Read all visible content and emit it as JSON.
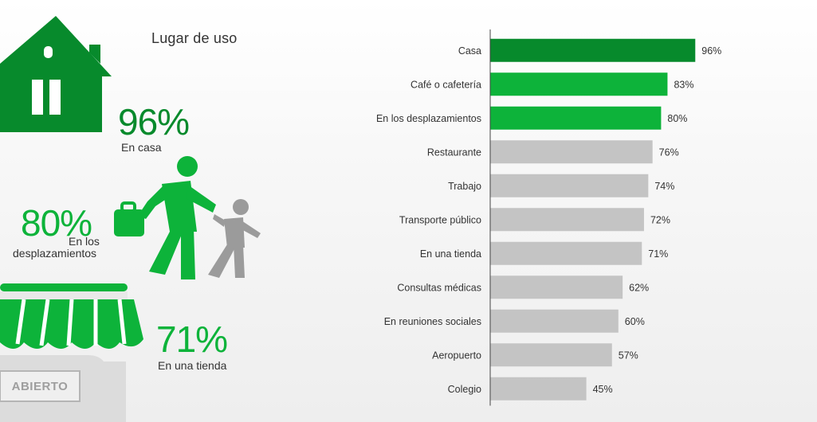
{
  "colors": {
    "dark_green": "#078a2c",
    "bright_green": "#0db33a",
    "gray": "#c4c4c4",
    "axis": "#444444",
    "text": "#333333"
  },
  "panel_title": "Lugar de uso",
  "highlights": {
    "home": {
      "value": "96%",
      "label": "En casa",
      "icon": "house-icon"
    },
    "commute": {
      "value": "80%",
      "label_line1": "En los",
      "label_line2": "desplazamientos",
      "icon": "commuters-icon"
    },
    "shop": {
      "value": "71%",
      "label": "En una tienda",
      "icon": "shop-awning-icon",
      "sign": "ABIERTO"
    }
  },
  "chart_data": {
    "type": "bar",
    "orientation": "horizontal",
    "categories": [
      "Casa",
      "Café o cafetería",
      "En los desplazamientos",
      "Restaurante",
      "Trabajo",
      "Transporte público",
      "En una tienda",
      "Consultas médicas",
      "En reuniones sociales",
      "Aeropuerto",
      "Colegio"
    ],
    "values": [
      96,
      83,
      80,
      76,
      74,
      72,
      71,
      62,
      60,
      57,
      45
    ],
    "value_labels": [
      "96%",
      "83%",
      "80%",
      "76%",
      "74%",
      "72%",
      "71%",
      "62%",
      "60%",
      "57%",
      "45%"
    ],
    "bar_colors": [
      "#078a2c",
      "#0db33a",
      "#0db33a",
      "#c4c4c4",
      "#c4c4c4",
      "#c4c4c4",
      "#c4c4c4",
      "#c4c4c4",
      "#c4c4c4",
      "#c4c4c4",
      "#c4c4c4"
    ],
    "xlim": [
      0,
      100
    ],
    "grid": false
  }
}
